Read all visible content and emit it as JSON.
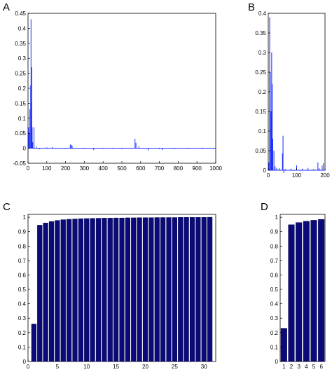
{
  "colors": {
    "line": "#1a2cff",
    "bar": "#0a0a7a",
    "bar_edge": "#000040",
    "axes": "#000000"
  },
  "chart_data": [
    {
      "panel": "A",
      "type": "line",
      "xlim": [
        0,
        1000
      ],
      "ylim": [
        -0.05,
        0.45
      ],
      "xticks": [
        "0",
        "100",
        "200",
        "300",
        "400",
        "500",
        "600",
        "700",
        "800",
        "900",
        "1000"
      ],
      "yticks": [
        "-0.05",
        "0",
        "0.05",
        "0.1",
        "0.15",
        "0.2",
        "0.25",
        "0.3",
        "0.35",
        "0.4",
        "0.45"
      ],
      "grid": false,
      "spikes": [
        [
          3,
          0.07
        ],
        [
          6,
          0.05
        ],
        [
          10,
          0.13
        ],
        [
          14,
          0.21
        ],
        [
          16,
          0.43
        ],
        [
          18,
          0.15
        ],
        [
          20,
          0.27
        ],
        [
          22,
          0.07
        ],
        [
          25,
          0.02
        ],
        [
          32,
          0.07
        ],
        [
          45,
          0.005
        ],
        [
          60,
          -0.004
        ],
        [
          100,
          0.003
        ],
        [
          130,
          0.004
        ],
        [
          200,
          -0.002
        ],
        [
          225,
          0.012
        ],
        [
          230,
          0.012
        ],
        [
          235,
          0.008
        ],
        [
          300,
          -0.002
        ],
        [
          350,
          -0.006
        ],
        [
          400,
          -0.002
        ],
        [
          450,
          -0.002
        ],
        [
          500,
          -0.003
        ],
        [
          570,
          0.031
        ],
        [
          575,
          0.018
        ],
        [
          590,
          0.006
        ],
        [
          640,
          -0.007
        ],
        [
          700,
          -0.003
        ],
        [
          715,
          -0.006
        ],
        [
          780,
          -0.003
        ],
        [
          850,
          -0.002
        ],
        [
          930,
          -0.003
        ],
        [
          990,
          -0.002
        ]
      ]
    },
    {
      "panel": "B",
      "type": "line",
      "xlim": [
        0,
        200
      ],
      "ylim": [
        0,
        0.4
      ],
      "xticks": [
        "0",
        "100",
        "200"
      ],
      "yticks": [
        "0",
        "0.05",
        "0.1",
        "0.15",
        "0.2",
        "0.25",
        "0.3",
        "0.35",
        "0.4"
      ],
      "grid": false,
      "spikes": [
        [
          2,
          0.02
        ],
        [
          5,
          0.39
        ],
        [
          7,
          0.25
        ],
        [
          10,
          0.15
        ],
        [
          12,
          0.3
        ],
        [
          14,
          0.22
        ],
        [
          16,
          0.08
        ],
        [
          20,
          0.05
        ],
        [
          24,
          0.01
        ],
        [
          30,
          0.006
        ],
        [
          40,
          0.005
        ],
        [
          50,
          0.043
        ],
        [
          52,
          0.088
        ],
        [
          55,
          -0.007
        ],
        [
          60,
          0.003
        ],
        [
          80,
          0.004
        ],
        [
          100,
          0.012
        ],
        [
          120,
          0.004
        ],
        [
          140,
          0.006
        ],
        [
          160,
          0.003
        ],
        [
          175,
          0.02
        ],
        [
          180,
          0.005
        ],
        [
          190,
          0.012
        ],
        [
          195,
          0.018
        ]
      ]
    },
    {
      "panel": "C",
      "type": "bar",
      "xlim": [
        0,
        32
      ],
      "ylim": [
        0,
        1.02
      ],
      "xticks": [
        "0",
        "5",
        "10",
        "15",
        "20",
        "25",
        "30"
      ],
      "yticks": [
        "0",
        "0.1",
        "0.2",
        "0.3",
        "0.4",
        "0.5",
        "0.6",
        "0.7",
        "0.8",
        "0.9",
        "1"
      ],
      "grid": false,
      "categories": [
        1,
        2,
        3,
        4,
        5,
        6,
        7,
        8,
        9,
        10,
        11,
        12,
        13,
        14,
        15,
        16,
        17,
        18,
        19,
        20,
        21,
        22,
        23,
        24,
        25,
        26,
        27,
        28,
        29,
        30,
        31
      ],
      "values": [
        0.26,
        0.945,
        0.96,
        0.97,
        0.978,
        0.983,
        0.986,
        0.988,
        0.99,
        0.991,
        0.992,
        0.993,
        0.994,
        0.994,
        0.995,
        0.995,
        0.996,
        0.996,
        0.997,
        0.997,
        0.997,
        0.998,
        0.998,
        0.998,
        0.998,
        0.999,
        0.999,
        0.999,
        0.999,
        0.999,
        1.0
      ]
    },
    {
      "panel": "D",
      "type": "bar",
      "xlim": [
        0.5,
        6.5
      ],
      "ylim": [
        0,
        1.02
      ],
      "xticks": [
        "1",
        "2",
        "3",
        "4",
        "5",
        "6"
      ],
      "yticks": [
        "0",
        "0.1",
        "0.2",
        "0.3",
        "0.4",
        "0.5",
        "0.6",
        "0.7",
        "0.8",
        "0.9",
        "1"
      ],
      "grid": false,
      "categories": [
        1,
        2,
        3,
        4,
        5,
        6
      ],
      "values": [
        0.23,
        0.948,
        0.963,
        0.972,
        0.979,
        0.985
      ]
    }
  ]
}
